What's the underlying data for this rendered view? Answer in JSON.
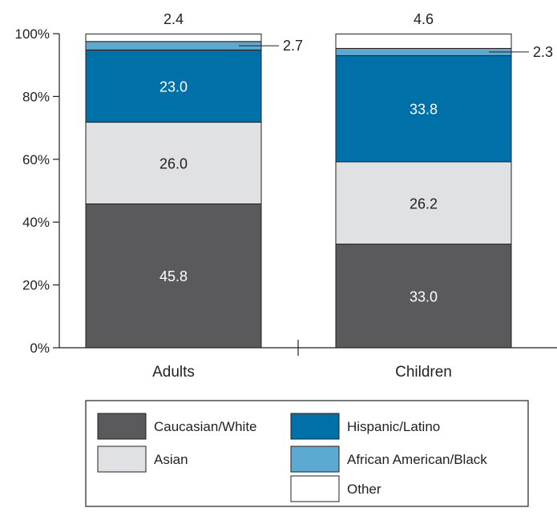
{
  "chart_data": {
    "type": "bar",
    "stacked": true,
    "categories": [
      "Adults",
      "Children"
    ],
    "series": [
      {
        "name": "Caucasian/White",
        "values": [
          45.8,
          33.0
        ],
        "color": "#5a5a5c",
        "label_color": "#ffffff"
      },
      {
        "name": "Asian",
        "values": [
          26.0,
          26.2
        ],
        "color": "#e0e1e2",
        "label_color": "#231f20"
      },
      {
        "name": "Hispanic/Latino",
        "values": [
          23.0,
          33.8
        ],
        "color": "#0071a8",
        "label_color": "#ffffff"
      },
      {
        "name": "African American/Black",
        "values": [
          2.7,
          2.3
        ],
        "color": "#5ca9d1",
        "label_color": "#231f20"
      },
      {
        "name": "Other",
        "values": [
          2.4,
          4.6
        ],
        "color": "#ffffff",
        "label_color": "#231f20"
      }
    ],
    "ylim": [
      0,
      100
    ],
    "yticks": [
      "0%",
      "20%",
      "40%",
      "60%",
      "80%",
      "100%"
    ],
    "ytick_values": [
      0,
      20,
      40,
      60,
      80,
      100
    ],
    "xlabel": "",
    "ylabel": "",
    "grid": false,
    "legend_position": "bottom"
  }
}
